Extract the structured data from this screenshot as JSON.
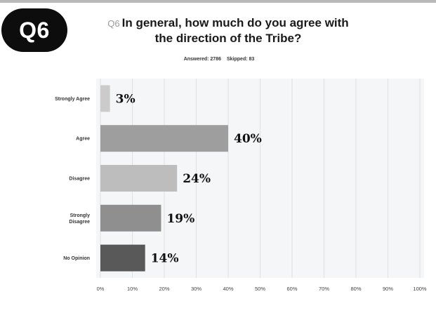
{
  "badge": "Q6",
  "question_number": "Q6",
  "title_line1": "In general, how much do you agree with",
  "title_line2": "the direction of the Tribe?",
  "answered": "Answered: 2786",
  "skipped": "Skipped: 83",
  "chart_data": {
    "type": "bar",
    "orientation": "horizontal",
    "categories": [
      "Strongly Agree",
      "Agree",
      "Disagree",
      "Strongly Disagree",
      "No Opinion"
    ],
    "category_display": [
      [
        "Strongly Agree"
      ],
      [
        "Agree"
      ],
      [
        "Disagree"
      ],
      [
        "Strongly",
        "Disagree"
      ],
      [
        "No Opinion"
      ]
    ],
    "values": [
      3,
      40,
      24,
      19,
      14
    ],
    "value_labels": [
      "3%",
      "40%",
      "24%",
      "19%",
      "14%"
    ],
    "bar_colors": [
      "#cbcbcb",
      "#9e9e9e",
      "#bdbdbd",
      "#8f8f8f",
      "#595959"
    ],
    "xlim": [
      0,
      100
    ],
    "x_ticks": [
      "0%",
      "10%",
      "20%",
      "30%",
      "40%",
      "50%",
      "60%",
      "70%",
      "80%",
      "90%",
      "100%"
    ],
    "grid": true,
    "legend": "none"
  }
}
